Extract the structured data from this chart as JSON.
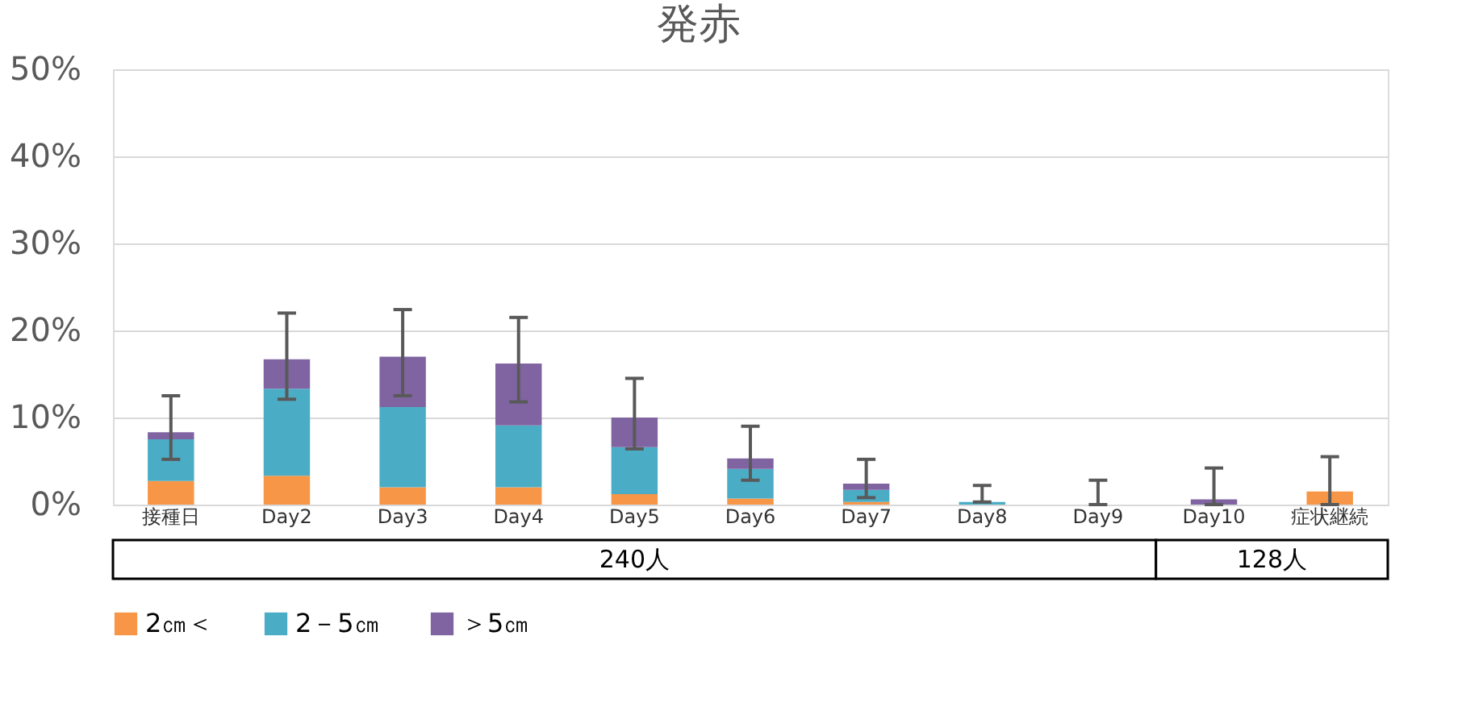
{
  "chart_data": {
    "type": "bar",
    "title": "発赤",
    "stacked": true,
    "categories": [
      "接種日",
      "Day2",
      "Day3",
      "Day4",
      "Day5",
      "Day6",
      "Day7",
      "Day8",
      "Day9",
      "Day10",
      "症状継続"
    ],
    "series": [
      {
        "name": "2㎝＜",
        "color": "#f79646",
        "values": [
          2.7,
          3.3,
          2.0,
          2.0,
          1.2,
          0.7,
          0.3,
          0,
          0,
          0,
          1.5
        ],
        "errors": [
          null,
          null,
          null,
          null,
          null,
          null,
          null,
          null,
          null,
          null,
          [
            0,
            5.5
          ]
        ]
      },
      {
        "name": "2－5㎝",
        "color": "#4bacc6",
        "values": [
          4.8,
          10.0,
          9.2,
          7.1,
          5.4,
          3.4,
          1.4,
          0.3,
          0,
          0,
          0
        ],
        "errors": [
          null,
          null,
          null,
          null,
          null,
          null,
          null,
          [
            0.3,
            2.2
          ],
          null,
          null,
          null
        ]
      },
      {
        "name": "＞5㎝",
        "color": "#8064a2",
        "values": [
          0.8,
          3.4,
          5.8,
          7.1,
          3.4,
          1.2,
          0.7,
          0,
          0,
          0.6,
          0
        ],
        "errors": [
          [
            5.2,
            12.5
          ],
          [
            12.1,
            22.0
          ],
          [
            12.5,
            22.4
          ],
          [
            11.8,
            21.5
          ],
          [
            6.4,
            14.5
          ],
          [
            2.8,
            9.0
          ],
          [
            0.8,
            5.2
          ],
          null,
          [
            0,
            2.8
          ],
          [
            0,
            4.2
          ],
          null
        ]
      }
    ],
    "ylim": [
      0,
      50
    ],
    "yticks": [
      {
        "value": 0,
        "label": "0%"
      },
      {
        "value": 10,
        "label": "10%"
      },
      {
        "value": 20,
        "label": "20%"
      },
      {
        "value": 30,
        "label": "30%"
      },
      {
        "value": 40,
        "label": "40%"
      },
      {
        "value": 50,
        "label": "50%"
      }
    ],
    "grid": "y",
    "legend": "bottom",
    "annotations": [
      "240人",
      "128人"
    ]
  }
}
